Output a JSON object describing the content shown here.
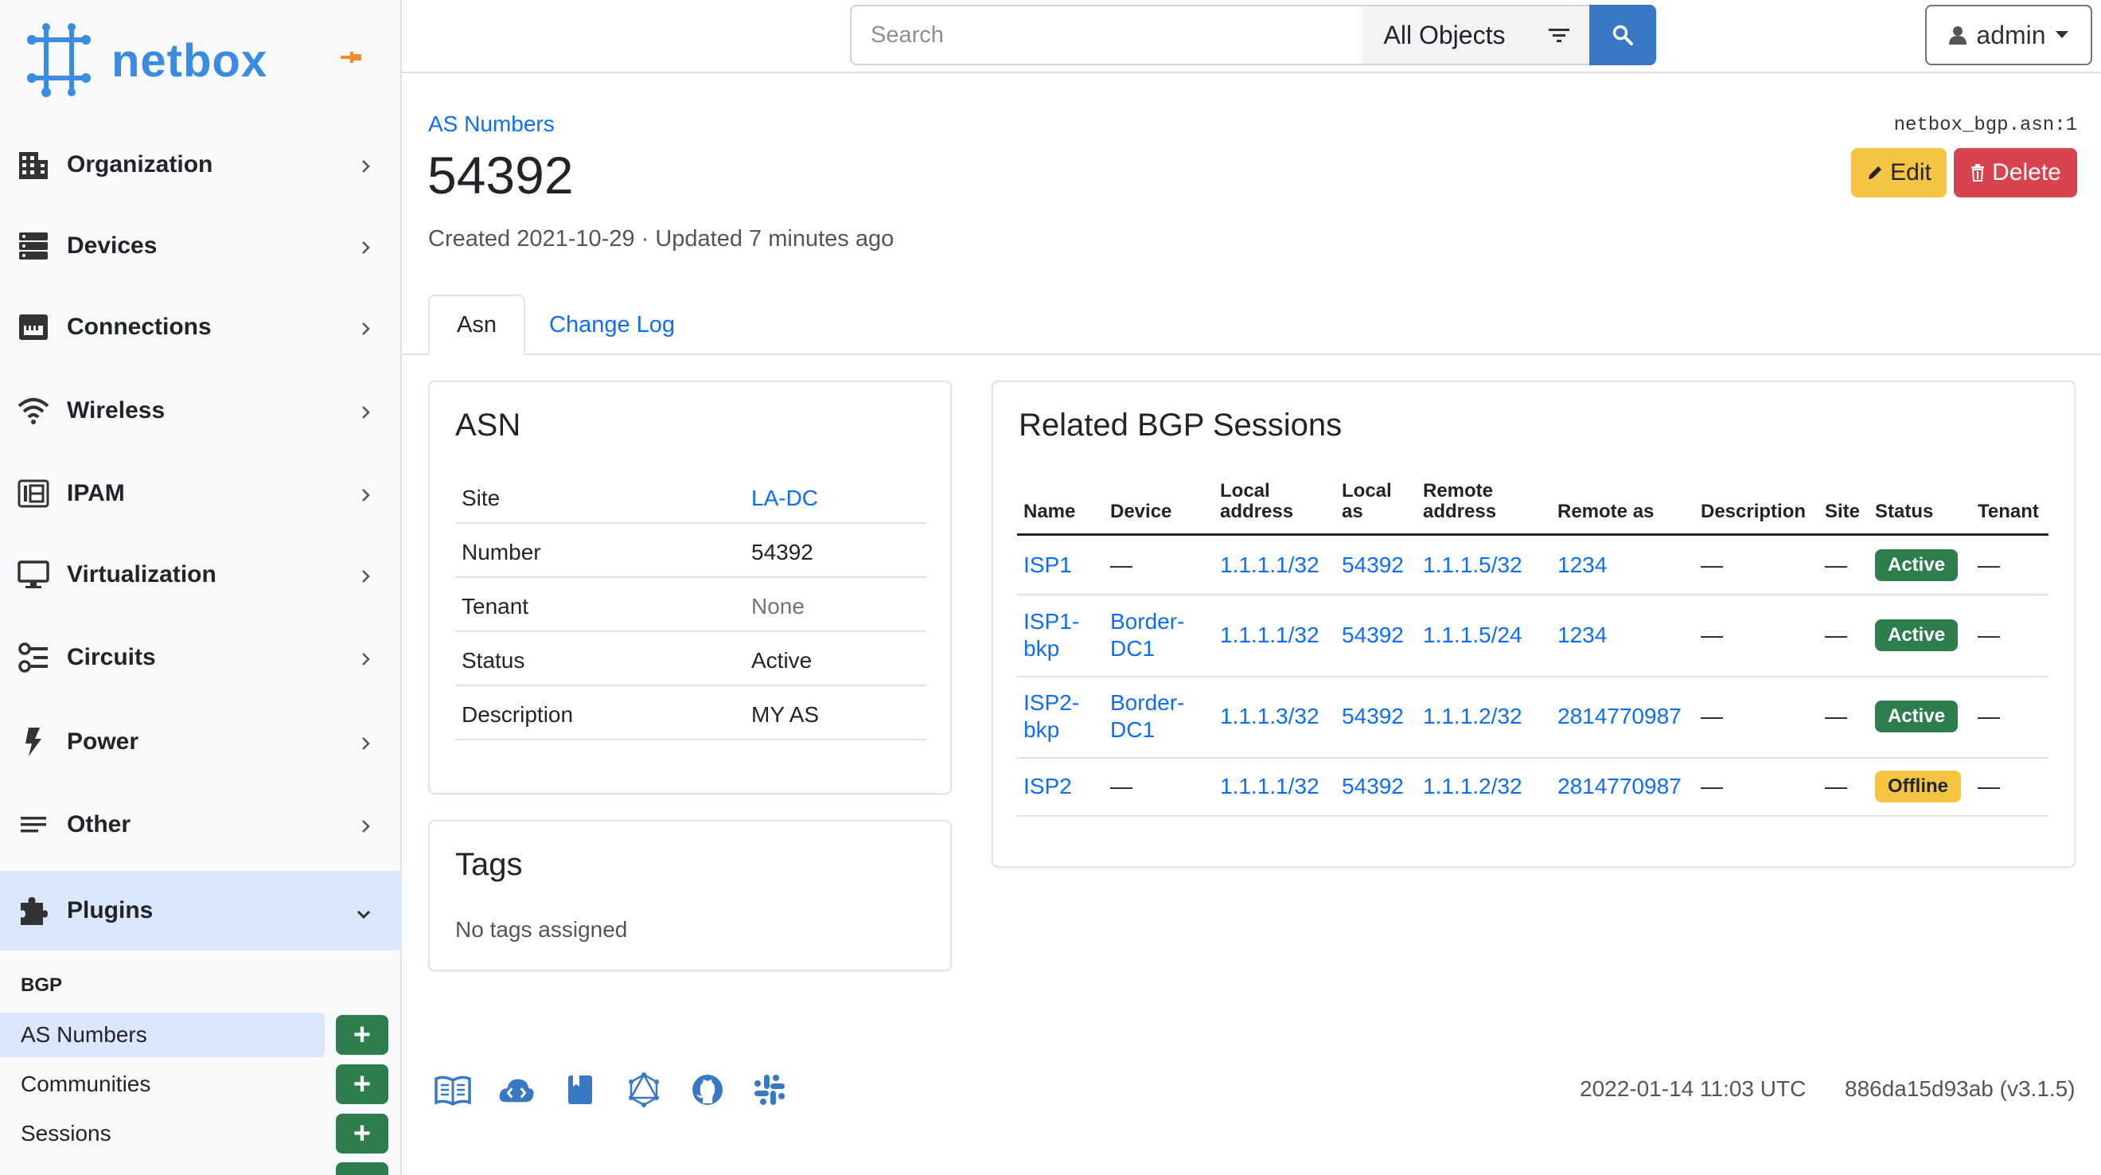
{
  "brand": {
    "name": "netbox"
  },
  "nav": {
    "items": [
      {
        "label": "Organization",
        "icon": "building-icon"
      },
      {
        "label": "Devices",
        "icon": "server-icon"
      },
      {
        "label": "Connections",
        "icon": "ethernet-icon"
      },
      {
        "label": "Wireless",
        "icon": "wifi-icon"
      },
      {
        "label": "IPAM",
        "icon": "ipam-icon"
      },
      {
        "label": "Virtualization",
        "icon": "monitor-icon"
      },
      {
        "label": "Circuits",
        "icon": "circuit-icon"
      },
      {
        "label": "Power",
        "icon": "bolt-icon"
      },
      {
        "label": "Other",
        "icon": "lines-icon"
      },
      {
        "label": "Plugins",
        "icon": "puzzle-icon",
        "expanded": true
      }
    ],
    "plugin_section": "BGP",
    "plugin_items": [
      {
        "label": "AS Numbers",
        "active": true
      },
      {
        "label": "Communities"
      },
      {
        "label": "Sessions"
      }
    ]
  },
  "header": {
    "search_placeholder": "Search",
    "scope": "All Objects",
    "user": "admin"
  },
  "page": {
    "breadcrumb": "AS Numbers",
    "title": "54392",
    "meta": "Created 2021-10-29 · Updated 7 minutes ago",
    "object_id": "netbox_bgp.asn:1",
    "edit_label": "Edit",
    "delete_label": "Delete",
    "tabs": [
      "Asn",
      "Change Log"
    ]
  },
  "asn_card": {
    "title": "ASN",
    "rows": [
      {
        "key": "Site",
        "value": "LA-DC",
        "link": true
      },
      {
        "key": "Number",
        "value": "54392"
      },
      {
        "key": "Tenant",
        "value": "None",
        "muted": true
      },
      {
        "key": "Status",
        "value": "Active"
      },
      {
        "key": "Description",
        "value": "MY AS"
      }
    ]
  },
  "tags_card": {
    "title": "Tags",
    "empty": "No tags assigned"
  },
  "sessions": {
    "title": "Related BGP Sessions",
    "columns": [
      "Name",
      "Device",
      "Local address",
      "Local as",
      "Remote address",
      "Remote as",
      "Description",
      "Site",
      "Status",
      "Tenant"
    ],
    "col_lines": {
      "local_address": [
        "Local",
        "address"
      ],
      "local_as": [
        "Local",
        "as"
      ],
      "remote_address": [
        "Remote",
        "address"
      ]
    },
    "rows": [
      {
        "name": [
          "ISP1"
        ],
        "device": [
          "—"
        ],
        "local_address": "1.1.1.1/32",
        "local_as": "54392",
        "remote_address": "1.1.1.5/32",
        "remote_as": "1234",
        "description": "—",
        "site": "—",
        "status": "Active",
        "tenant": "—"
      },
      {
        "name": [
          "ISP1-",
          "bkp"
        ],
        "device": [
          "Border-",
          "DC1"
        ],
        "local_address": "1.1.1.1/32",
        "local_as": "54392",
        "remote_address": "1.1.1.5/24",
        "remote_as": "1234",
        "description": "—",
        "site": "—",
        "status": "Active",
        "tenant": "—"
      },
      {
        "name": [
          "ISP2-",
          "bkp"
        ],
        "device": [
          "Border-",
          "DC1"
        ],
        "local_address": "1.1.1.3/32",
        "local_as": "54392",
        "remote_address": "1.1.1.2/32",
        "remote_as": "2814770987",
        "description": "—",
        "site": "—",
        "status": "Active",
        "tenant": "—"
      },
      {
        "name": [
          "ISP2"
        ],
        "device": [
          "—"
        ],
        "local_address": "1.1.1.1/32",
        "local_as": "54392",
        "remote_address": "1.1.1.2/32",
        "remote_as": "2814770987",
        "description": "—",
        "site": "—",
        "status": "Offline",
        "tenant": "—"
      }
    ]
  },
  "footer": {
    "icons": [
      "docs-icon",
      "api-icon",
      "bookmark-icon",
      "graphql-icon",
      "github-icon",
      "slack-icon"
    ],
    "timestamp": "2022-01-14 11:03 UTC",
    "version": "886da15d93ab (v3.1.5)"
  },
  "colors": {
    "link": "#0d6efd",
    "brand": "#3b8be0",
    "success": "#2e7d4f",
    "warning": "#f6c443",
    "danger": "#d9434f",
    "active_nav": "#dbe7fb"
  }
}
